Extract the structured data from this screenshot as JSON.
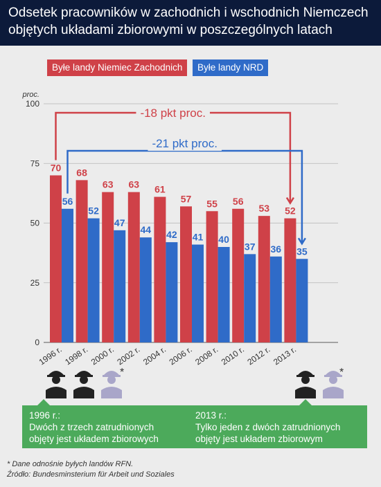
{
  "header": {
    "title_line1": "Odsetek pracowników w zachodnich i wschodnich Niemczech",
    "title_line2": "objętych układami zbiorowymi w poszczególnych latach"
  },
  "colors": {
    "west": "#cf4148",
    "east": "#2f6bc8",
    "note": "#4caa5b",
    "header": "#0c1a3a"
  },
  "chart_data": {
    "type": "bar",
    "categories": [
      "1996 r.",
      "1998 r.",
      "2000 r.",
      "2002 r.",
      "2004 r.",
      "2006 r.",
      "2008 r.",
      "2010 r.",
      "2012 r.",
      "2013 r."
    ],
    "series": [
      {
        "name": "Byłe landy Niemiec Zachodnich",
        "values": [
          70,
          68,
          63,
          63,
          61,
          57,
          55,
          56,
          53,
          52
        ]
      },
      {
        "name": "Byłe landy NRD",
        "values": [
          56,
          52,
          47,
          44,
          42,
          41,
          40,
          37,
          36,
          35
        ]
      }
    ],
    "ylabel": "proc.",
    "yticks": [
      0,
      25,
      50,
      75,
      100
    ],
    "ylim": [
      0,
      100
    ],
    "grid": true,
    "legend_position": "top-left",
    "annotations": [
      "-18 pkt proc.",
      "-21 pkt proc."
    ]
  },
  "notes": {
    "left_title": "1996 r.:",
    "left_text1": "Dwóch z trzech zatrudnionych",
    "left_text2": "objęty jest układem zbiorowych",
    "right_title": "2013 r.:",
    "right_text1": "Tylko jeden z dwóch zatrudnionych",
    "right_text2": "objęty jest układem zbiorowym",
    "asterisk": "*"
  },
  "footer": {
    "line1": "* Dane odnośnie byłych landów RFN.",
    "line2": "Źródło: Bundesminsterium für Arbeit und Soziales"
  }
}
